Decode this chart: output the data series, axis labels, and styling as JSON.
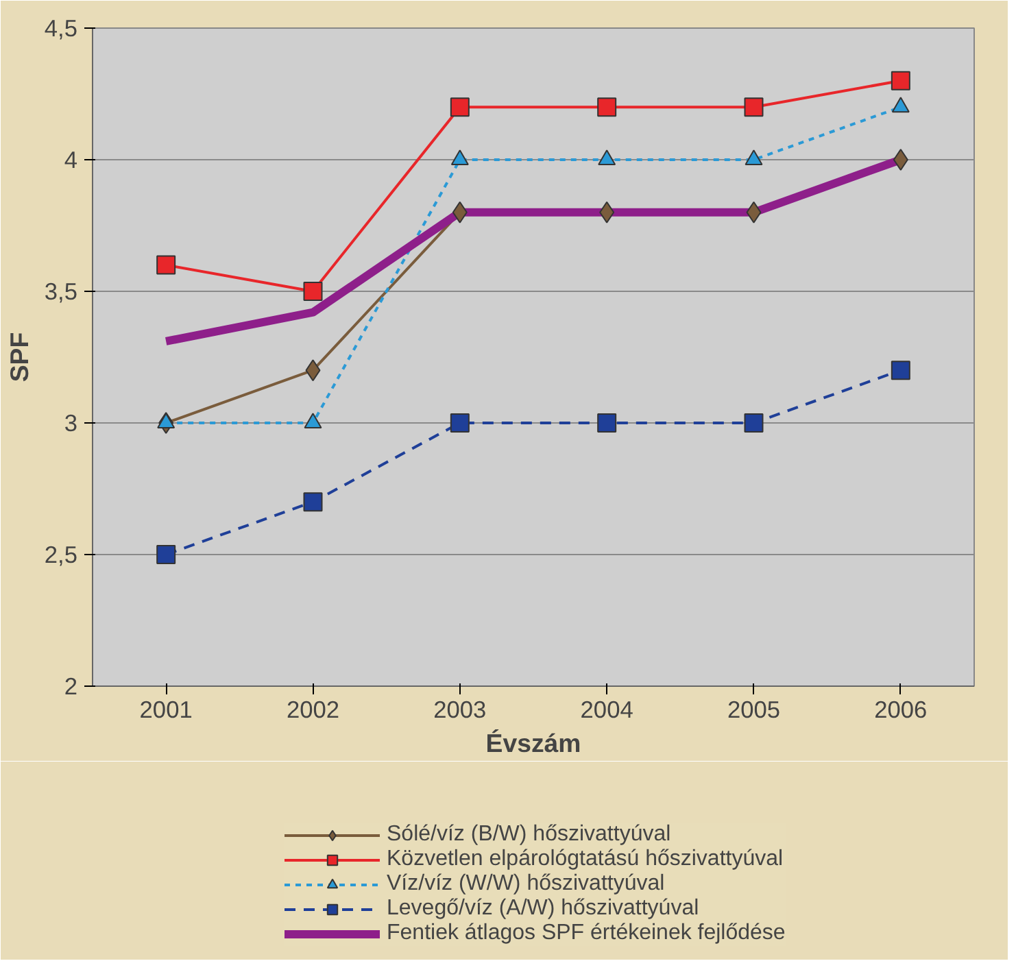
{
  "chart_data": {
    "type": "line",
    "xlabel": "Évszám",
    "ylabel": "SPF",
    "categories": [
      "2001",
      "2002",
      "2003",
      "2004",
      "2005",
      "2006"
    ],
    "ylim": [
      2,
      4.5
    ],
    "yticks": [
      {
        "value": 2,
        "label": "2"
      },
      {
        "value": 2.5,
        "label": "2,5"
      },
      {
        "value": 3,
        "label": "3"
      },
      {
        "value": 3.5,
        "label": "3,5"
      },
      {
        "value": 4,
        "label": "4"
      },
      {
        "value": 4.5,
        "label": "4,5"
      }
    ],
    "grid": "y",
    "legend": "bottom",
    "series": [
      {
        "name": "Sólé/víz (B/W) hőszivattyúval",
        "color": "#7a5c3c",
        "marker": "diamond",
        "line_style": "solid",
        "values": [
          3.0,
          3.2,
          3.8,
          3.8,
          3.8,
          4.0
        ]
      },
      {
        "name": "Közvetlen elpárológtatású hőszivattyúval",
        "color": "#e8262a",
        "marker": "square",
        "line_style": "solid",
        "values": [
          3.6,
          3.5,
          4.2,
          4.2,
          4.2,
          4.3
        ]
      },
      {
        "name": "Víz/víz (W/W) hőszivattyúval",
        "color": "#2b9ad6",
        "marker": "triangle",
        "line_style": "dotted",
        "values": [
          3.0,
          3.0,
          4.0,
          4.0,
          4.0,
          4.2
        ]
      },
      {
        "name": "Levegő/víz (A/W) hőszivattyúval",
        "color": "#1f3f98",
        "marker": "square",
        "line_style": "dashed",
        "values": [
          2.5,
          2.7,
          3.0,
          3.0,
          3.0,
          3.2
        ]
      },
      {
        "name": "Fentiek átlagos SPF értékeinek fejlődése",
        "color": "#8e1f8a",
        "marker": "none",
        "line_style": "solid",
        "values": [
          3.31,
          3.42,
          3.8,
          3.8,
          3.8,
          4.0
        ]
      }
    ]
  }
}
